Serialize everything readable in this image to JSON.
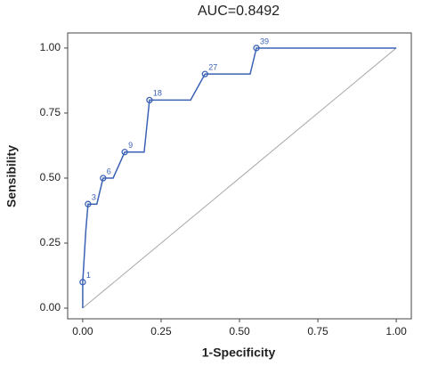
{
  "chart_data": {
    "type": "roc",
    "title": "AUC=0.8492",
    "x_label": "1-Specificity",
    "y_label": "Sensibility",
    "xlim": [
      -0.048,
      1.048
    ],
    "ylim": [
      -0.041,
      1.058
    ],
    "xticks": [
      {
        "value": 0,
        "label": "0.00"
      },
      {
        "value": 0.25,
        "label": "0.25"
      },
      {
        "value": 0.5,
        "label": "0.50"
      },
      {
        "value": 0.75,
        "label": "0.75"
      },
      {
        "value": 1,
        "label": "1.00"
      }
    ],
    "yticks": [
      {
        "value": 0,
        "label": "0.00"
      },
      {
        "value": 0.25,
        "label": "0.25"
      },
      {
        "value": 0.5,
        "label": "0.50"
      },
      {
        "value": 0.75,
        "label": "0.75"
      },
      {
        "value": 1,
        "label": "1.00"
      }
    ],
    "grid": false,
    "curve": {
      "color": "#3b62b5",
      "x": [
        0,
        0,
        0.01,
        0.017,
        0.045,
        0.065,
        0.097,
        0.134,
        0.196,
        0.213,
        0.344,
        0.39,
        0.534,
        0.554,
        1.0
      ],
      "y": [
        0,
        0.1,
        0.3,
        0.4,
        0.4,
        0.5,
        0.5,
        0.6,
        0.6,
        0.8,
        0.8,
        0.9,
        0.9,
        1.0,
        1.0
      ]
    },
    "points": {
      "color": "#3b62b5",
      "x": [
        0,
        0.017,
        0.065,
        0.134,
        0.213,
        0.39,
        0.554
      ],
      "y": [
        0.1,
        0.4,
        0.5,
        0.6,
        0.8,
        0.9,
        1.0
      ],
      "labels": [
        "1",
        "3",
        "6",
        "9",
        "18",
        "27",
        "39"
      ]
    },
    "diagonal": {
      "color": "#a8a8a8",
      "x": [
        0,
        1
      ],
      "y": [
        0,
        1
      ]
    }
  }
}
